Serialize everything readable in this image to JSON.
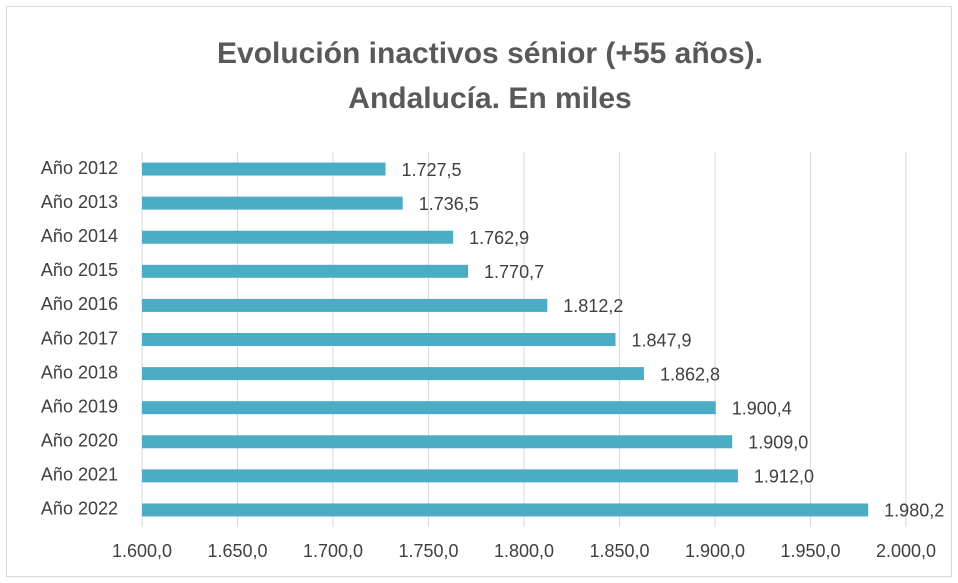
{
  "chart_data": {
    "type": "bar",
    "orientation": "horizontal",
    "title": [
      "Evolución inactivos sénior (+55 años).",
      "Andalucía. En miles"
    ],
    "categories": [
      "Año 2012",
      "Año 2013",
      "Año 2014",
      "Año 2015",
      "Año 2016",
      "Año 2017",
      "Año 2018",
      "Año 2019",
      "Año 2020",
      "Año 2021",
      "Año 2022"
    ],
    "values": [
      1727.5,
      1736.5,
      1762.9,
      1770.7,
      1812.2,
      1847.9,
      1862.8,
      1900.4,
      1909.0,
      1912.0,
      1980.2
    ],
    "value_labels": [
      "1.727,5",
      "1.736,5",
      "1.762,9",
      "1.770,7",
      "1.812,2",
      "1.847,9",
      "1.862,8",
      "1.900,4",
      "1.909,0",
      "1.912,0",
      "1.980,2"
    ],
    "color": "#4bacc6",
    "xlim": [
      1600,
      2000
    ],
    "xticks": [
      {
        "value": 1600,
        "label": "1.600,0"
      },
      {
        "value": 1650,
        "label": "1.650,0"
      },
      {
        "value": 1700,
        "label": "1.700,0"
      },
      {
        "value": 1750,
        "label": "1.750,0"
      },
      {
        "value": 1800,
        "label": "1.800,0"
      },
      {
        "value": 1850,
        "label": "1.850,0"
      },
      {
        "value": 1900,
        "label": "1.900,0"
      },
      {
        "value": 1950,
        "label": "1.950,0"
      },
      {
        "value": 2000,
        "label": "2.000,0"
      }
    ],
    "grid": true
  }
}
